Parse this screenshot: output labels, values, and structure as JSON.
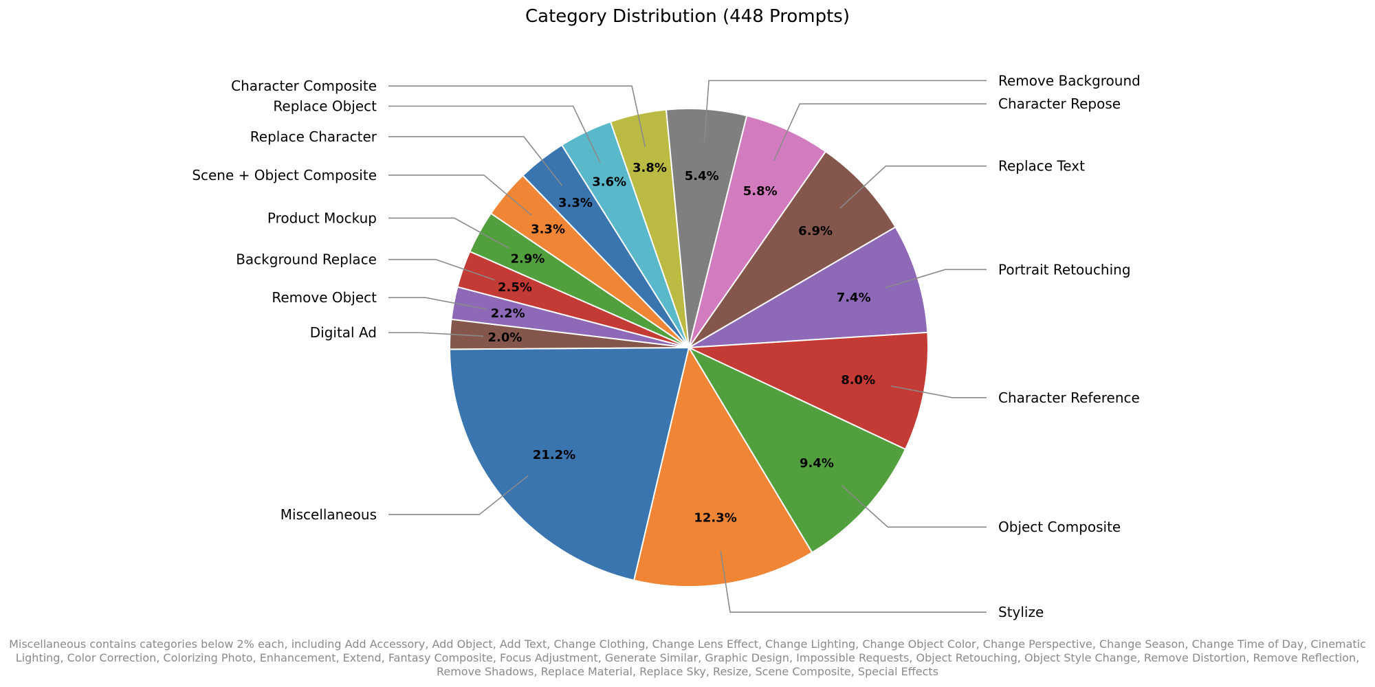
{
  "chart_data": {
    "type": "pie",
    "title": "Category Distribution (448 Prompts)",
    "slices": [
      {
        "label": "Character Repose",
        "value": 5.8,
        "display": "5.8%",
        "color": "#d37bbf"
      },
      {
        "label": "Replace Text",
        "value": 6.9,
        "display": "6.9%",
        "color": "#84564c"
      },
      {
        "label": "Portrait Retouching",
        "value": 7.4,
        "display": "7.4%",
        "color": "#8d69b7"
      },
      {
        "label": "Character Reference",
        "value": 8.0,
        "display": "8.0%",
        "color": "#c43a34"
      },
      {
        "label": "Object Composite",
        "value": 9.4,
        "display": "9.4%",
        "color": "#519f3d"
      },
      {
        "label": "Stylize",
        "value": 12.3,
        "display": "12.3%",
        "color": "#ef8535"
      },
      {
        "label": "Miscellaneous",
        "value": 21.2,
        "display": "21.2%",
        "color": "#3a75af"
      },
      {
        "label": "Digital Ad",
        "value": 2.0,
        "display": "2.0%",
        "color": "#84564c"
      },
      {
        "label": "Remove Object",
        "value": 2.2,
        "display": "2.2%",
        "color": "#8d69b7"
      },
      {
        "label": "Background Replace",
        "value": 2.5,
        "display": "2.5%",
        "color": "#c43a34"
      },
      {
        "label": "Product Mockup",
        "value": 2.9,
        "display": "2.9%",
        "color": "#519f3d"
      },
      {
        "label": "Scene + Object Composite",
        "value": 3.3,
        "display": "3.3%",
        "color": "#ef8535"
      },
      {
        "label": "Replace Character",
        "value": 3.3,
        "display": "3.3%",
        "color": "#3a75af"
      },
      {
        "label": "Replace Object",
        "value": 3.6,
        "display": "3.6%",
        "color": "#59b9cb"
      },
      {
        "label": "Character Composite",
        "value": 3.8,
        "display": "3.8%",
        "color": "#bbbb44"
      },
      {
        "label": "Remove Background",
        "value": 5.4,
        "display": "5.4%",
        "color": "#7f7f7f"
      }
    ],
    "footnote": "Miscellaneous contains categories below 2% each, including Add Accessory, Add Object, Add Text, Change Clothing, Change Lens Effect, Change Lighting, Change Object Color, Change Perspective, Change Season, Change Time of Day, Cinematic Lighting, Color Correction, Colorizing Photo, Enhancement, Extend, Fantasy Composite, Focus Adjustment, Generate Similar, Graphic Design, Impossible Requests, Object Retouching, Object Style Change, Remove Distortion, Remove Reflection, Remove Shadows, Replace Material, Replace Sky, Resize, Scene Composite, Special Effects"
  }
}
